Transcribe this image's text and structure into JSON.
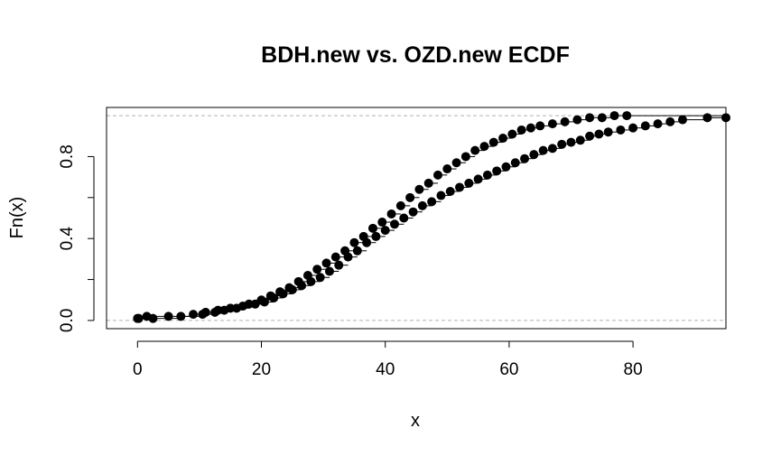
{
  "chart_data": {
    "type": "scatter",
    "title": "BDH.new vs. OZD.new ECDF",
    "xlabel": "x",
    "ylabel": "Fn(x)",
    "xlim": [
      -5,
      95
    ],
    "ylim": [
      -0.04,
      1.04
    ],
    "x_ticks": [
      0,
      20,
      40,
      60,
      80
    ],
    "x_tick_labels": [
      "0",
      "20",
      "40",
      "60",
      "80"
    ],
    "y_ticks": [
      0,
      0.2,
      0.4,
      0.6,
      0.8
    ],
    "y_tick_labels": [
      "0.0",
      "0.2",
      "0.4",
      "0.6",
      "0.8"
    ],
    "y_tick_labels_shown": [
      true,
      false,
      true,
      false,
      true
    ],
    "reference_lines": [
      0,
      1
    ],
    "grid": false,
    "legend": "none",
    "series": [
      {
        "points": [
          [
            0.0,
            0.01
          ],
          [
            1.5,
            0.02
          ],
          [
            5.0,
            0.02
          ],
          [
            9.0,
            0.03
          ],
          [
            11.0,
            0.04
          ],
          [
            13.0,
            0.05
          ],
          [
            15.0,
            0.06
          ],
          [
            17.0,
            0.07
          ],
          [
            19.0,
            0.08
          ],
          [
            20.5,
            0.09
          ],
          [
            22.0,
            0.11
          ],
          [
            23.5,
            0.13
          ],
          [
            25.0,
            0.15
          ],
          [
            26.5,
            0.17
          ],
          [
            28.0,
            0.19
          ],
          [
            29.5,
            0.21
          ],
          [
            31.0,
            0.24
          ],
          [
            32.5,
            0.27
          ],
          [
            34.0,
            0.31
          ],
          [
            35.5,
            0.34
          ],
          [
            37.0,
            0.38
          ],
          [
            38.5,
            0.41
          ],
          [
            40.0,
            0.44
          ],
          [
            41.5,
            0.47
          ],
          [
            43.0,
            0.5
          ],
          [
            44.5,
            0.53
          ],
          [
            46.0,
            0.56
          ],
          [
            47.5,
            0.58
          ],
          [
            49.0,
            0.61
          ],
          [
            50.5,
            0.63
          ],
          [
            52.0,
            0.65
          ],
          [
            53.5,
            0.67
          ],
          [
            55.0,
            0.69
          ],
          [
            56.5,
            0.71
          ],
          [
            58.0,
            0.73
          ],
          [
            59.5,
            0.75
          ],
          [
            61.0,
            0.77
          ],
          [
            62.5,
            0.79
          ],
          [
            64.0,
            0.81
          ],
          [
            65.5,
            0.83
          ],
          [
            67.0,
            0.84
          ],
          [
            68.5,
            0.86
          ],
          [
            70.0,
            0.87
          ],
          [
            71.5,
            0.88
          ],
          [
            73.0,
            0.9
          ],
          [
            74.5,
            0.91
          ],
          [
            76.0,
            0.92
          ],
          [
            78.0,
            0.93
          ],
          [
            80.0,
            0.94
          ],
          [
            82.0,
            0.95
          ],
          [
            84.0,
            0.96
          ],
          [
            86.0,
            0.97
          ],
          [
            88.0,
            0.98
          ],
          [
            92.0,
            0.99
          ],
          [
            95.0,
            0.99
          ]
        ]
      },
      {
        "points": [
          [
            0.2,
            0.01
          ],
          [
            2.5,
            0.01
          ],
          [
            7.0,
            0.02
          ],
          [
            10.5,
            0.03
          ],
          [
            12.5,
            0.04
          ],
          [
            14.0,
            0.05
          ],
          [
            16.0,
            0.06
          ],
          [
            18.0,
            0.08
          ],
          [
            20.0,
            0.1
          ],
          [
            21.5,
            0.12
          ],
          [
            23.0,
            0.14
          ],
          [
            24.5,
            0.16
          ],
          [
            26.0,
            0.19
          ],
          [
            27.5,
            0.22
          ],
          [
            29.0,
            0.25
          ],
          [
            30.5,
            0.28
          ],
          [
            32.0,
            0.31
          ],
          [
            33.5,
            0.34
          ],
          [
            35.0,
            0.38
          ],
          [
            36.5,
            0.41
          ],
          [
            38.0,
            0.45
          ],
          [
            39.5,
            0.48
          ],
          [
            41.0,
            0.52
          ],
          [
            42.5,
            0.56
          ],
          [
            44.0,
            0.6
          ],
          [
            45.5,
            0.64
          ],
          [
            47.0,
            0.67
          ],
          [
            48.5,
            0.71
          ],
          [
            50.0,
            0.74
          ],
          [
            51.5,
            0.77
          ],
          [
            53.0,
            0.8
          ],
          [
            54.5,
            0.83
          ],
          [
            56.0,
            0.85
          ],
          [
            57.5,
            0.87
          ],
          [
            59.0,
            0.89
          ],
          [
            60.5,
            0.91
          ],
          [
            62.0,
            0.93
          ],
          [
            63.5,
            0.94
          ],
          [
            65.0,
            0.95
          ],
          [
            67.0,
            0.96
          ],
          [
            69.0,
            0.97
          ],
          [
            71.0,
            0.98
          ],
          [
            73.0,
            0.99
          ],
          [
            75.0,
            0.99
          ],
          [
            77.0,
            1.0
          ],
          [
            79.0,
            1.0
          ]
        ]
      }
    ]
  }
}
